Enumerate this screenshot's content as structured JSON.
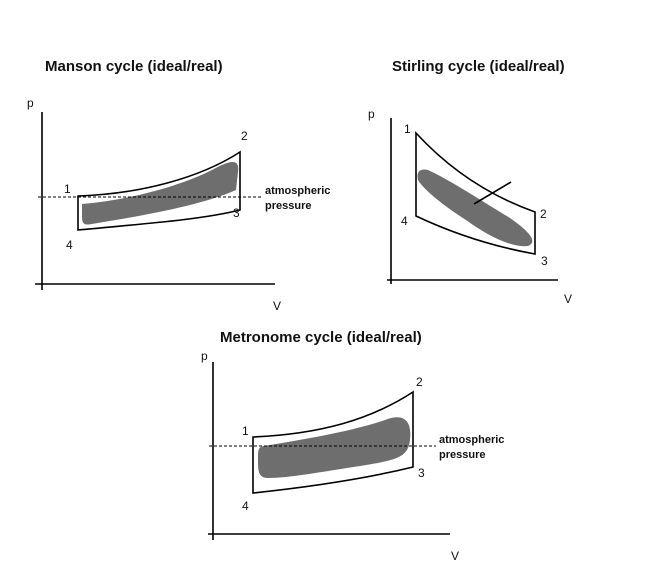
{
  "diagrams": {
    "manson": {
      "title": "Manson cycle (ideal/real)",
      "y_axis": "p",
      "x_axis": "V",
      "points": [
        "1",
        "2",
        "3",
        "4"
      ],
      "annotation_line1": "atmospheric",
      "annotation_line2": "pressure"
    },
    "stirling": {
      "title": "Stirling cycle (ideal/real)",
      "y_axis": "p",
      "x_axis": "V",
      "points": [
        "1",
        "2",
        "3",
        "4"
      ]
    },
    "metronome": {
      "title": "Metronome cycle (ideal/real)",
      "y_axis": "p",
      "x_axis": "V",
      "points": [
        "1",
        "2",
        "3",
        "4"
      ],
      "annotation_line1": "atmospheric",
      "annotation_line2": "pressure"
    }
  },
  "colors": {
    "ideal_outline": "#000000",
    "real_fill": "#6e6e6e",
    "background": "#ffffff"
  }
}
